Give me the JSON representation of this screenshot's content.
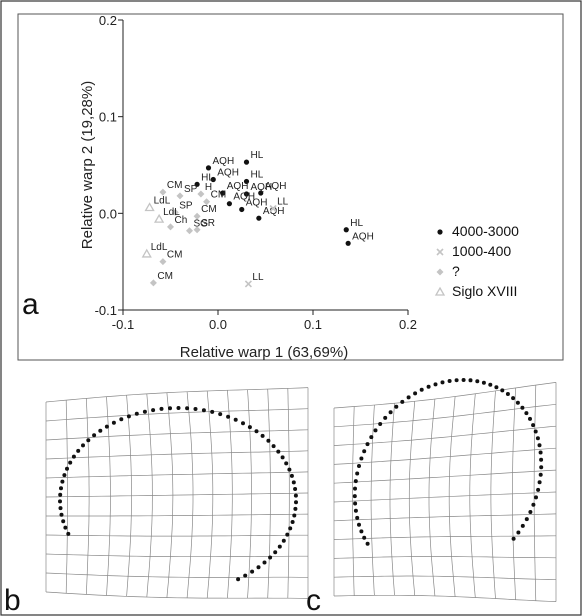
{
  "panels": {
    "a": {
      "label": "a"
    },
    "b": {
      "label": "b"
    },
    "c": {
      "label": "c"
    }
  },
  "chart_data": {
    "type": "scatter",
    "xlabel": "Relative warp 1 (63,69%)",
    "ylabel": "Relative warp 2 (19,28%)",
    "xlim": [
      -0.1,
      0.2
    ],
    "ylim": [
      -0.1,
      0.2
    ],
    "xticks": [
      "-0.1",
      "0.0",
      "0.1",
      "0.2"
    ],
    "yticks": [
      "-0.1",
      "0.0",
      "0.1",
      "0.2"
    ],
    "legend_position": "right",
    "series": [
      {
        "name": "4000-3000",
        "marker": "dot",
        "color": "#111111",
        "points": [
          {
            "x": 0.03,
            "y": 0.053,
            "label": "HL"
          },
          {
            "x": 0.03,
            "y": 0.033,
            "label": "HL"
          },
          {
            "x": -0.01,
            "y": 0.047,
            "label": "AQH"
          },
          {
            "x": -0.005,
            "y": 0.035,
            "label": "AQH"
          },
          {
            "x": -0.022,
            "y": 0.03,
            "label": "HL"
          },
          {
            "x": 0.005,
            "y": 0.021,
            "label": "AQH"
          },
          {
            "x": 0.045,
            "y": 0.021,
            "label": "AQH"
          },
          {
            "x": 0.03,
            "y": 0.02,
            "label": "AQH"
          },
          {
            "x": 0.012,
            "y": 0.01,
            "label": "AQH"
          },
          {
            "x": 0.025,
            "y": 0.004,
            "label": "AQH"
          },
          {
            "x": 0.043,
            "y": -0.005,
            "label": "AQH"
          },
          {
            "x": 0.135,
            "y": -0.017,
            "label": "HL"
          },
          {
            "x": 0.137,
            "y": -0.031,
            "label": "AQH"
          }
        ]
      },
      {
        "name": "1000-400",
        "marker": "cross",
        "color": "#c4c4c4",
        "points": [
          {
            "x": 0.058,
            "y": 0.005,
            "label": "LL"
          },
          {
            "x": 0.032,
            "y": -0.073,
            "label": "LL"
          }
        ]
      },
      {
        "name": "?",
        "marker": "diamond",
        "color": "#c4c4c4",
        "points": [
          {
            "x": -0.058,
            "y": 0.022,
            "label": "CM"
          },
          {
            "x": -0.04,
            "y": 0.018,
            "label": "SP"
          },
          {
            "x": -0.018,
            "y": 0.02,
            "label": "H"
          },
          {
            "x": -0.012,
            "y": 0.012,
            "label": "CM"
          },
          {
            "x": -0.045,
            "y": 0.001,
            "label": "SP"
          },
          {
            "x": -0.022,
            "y": -0.003,
            "label": "CM"
          },
          {
            "x": -0.03,
            "y": -0.018,
            "label": "SG"
          },
          {
            "x": -0.022,
            "y": -0.017,
            "label": "SR"
          },
          {
            "x": -0.05,
            "y": -0.014,
            "label": "Ch"
          },
          {
            "x": -0.058,
            "y": -0.05,
            "label": "CM"
          },
          {
            "x": -0.068,
            "y": -0.072,
            "label": "CM"
          }
        ]
      },
      {
        "name": "Siglo XVIII",
        "marker": "triangle",
        "color": "#c4c4c4",
        "points": [
          {
            "x": -0.072,
            "y": 0.006,
            "label": "LdL"
          },
          {
            "x": -0.062,
            "y": -0.006,
            "label": "LdL"
          },
          {
            "x": -0.075,
            "y": -0.042,
            "label": "LdL"
          }
        ]
      }
    ]
  }
}
